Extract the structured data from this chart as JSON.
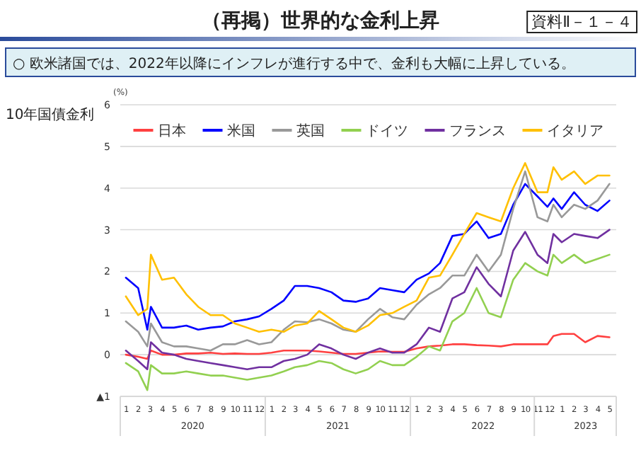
{
  "chart_data": {
    "type": "line",
    "title": "（再掲）世界的な金利上昇",
    "subtitle": "○ 欧米諸国では、2022年以降にインフレが進行する中で、金利も大幅に上昇している。",
    "ylabel": "(%)",
    "annotations": [
      "資料Ⅱ－１－４",
      "10年国債金利"
    ],
    "x": [
      "2020-01-15",
      "2020-02-15",
      "2020-03-09",
      "2020-03-18",
      "2020-04-15",
      "2020-05-15",
      "2020-06-15",
      "2020-07-15",
      "2020-08-15",
      "2020-09-15",
      "2020-10-15",
      "2020-11-15",
      "2020-12-15",
      "2021-01-15",
      "2021-02-15",
      "2021-03-15",
      "2021-04-15",
      "2021-05-15",
      "2021-06-15",
      "2021-07-15",
      "2021-08-15",
      "2021-09-15",
      "2021-10-15",
      "2021-11-15",
      "2021-12-15",
      "2022-01-15",
      "2022-02-15",
      "2022-03-15",
      "2022-04-15",
      "2022-05-15",
      "2022-06-15",
      "2022-07-15",
      "2022-08-15",
      "2022-09-15",
      "2022-10-15",
      "2022-11-15",
      "2022-12-10",
      "2022-12-25",
      "2023-01-15",
      "2023-02-15",
      "2023-03-15",
      "2023-04-15",
      "2023-05-15"
    ],
    "series": [
      {
        "name": "日本",
        "color": "#ff4040",
        "values": [
          0.0,
          -0.05,
          -0.1,
          0.1,
          0.0,
          0.0,
          0.03,
          0.03,
          0.05,
          0.02,
          0.03,
          0.02,
          0.02,
          0.05,
          0.1,
          0.1,
          0.1,
          0.08,
          0.05,
          0.02,
          0.02,
          0.05,
          0.08,
          0.07,
          0.07,
          0.15,
          0.2,
          0.22,
          0.25,
          0.25,
          0.23,
          0.22,
          0.2,
          0.25,
          0.25,
          0.25,
          0.25,
          0.45,
          0.5,
          0.5,
          0.3,
          0.45,
          0.42
        ]
      },
      {
        "name": "米国",
        "color": "#0000ff",
        "values": [
          1.85,
          1.6,
          0.6,
          1.15,
          0.65,
          0.65,
          0.7,
          0.6,
          0.65,
          0.68,
          0.8,
          0.85,
          0.92,
          1.1,
          1.3,
          1.65,
          1.65,
          1.6,
          1.5,
          1.3,
          1.27,
          1.35,
          1.6,
          1.55,
          1.5,
          1.8,
          1.95,
          2.2,
          2.85,
          2.9,
          3.2,
          2.8,
          2.9,
          3.6,
          4.1,
          3.8,
          3.55,
          3.75,
          3.5,
          3.9,
          3.6,
          3.45,
          3.7
        ]
      },
      {
        "name": "英国",
        "color": "#999999",
        "values": [
          0.8,
          0.55,
          0.2,
          0.75,
          0.3,
          0.2,
          0.2,
          0.15,
          0.1,
          0.25,
          0.25,
          0.35,
          0.25,
          0.3,
          0.6,
          0.8,
          0.78,
          0.85,
          0.75,
          0.6,
          0.55,
          0.85,
          1.1,
          0.9,
          0.85,
          1.2,
          1.45,
          1.6,
          1.9,
          1.9,
          2.4,
          2.0,
          2.4,
          3.5,
          4.4,
          3.3,
          3.2,
          3.6,
          3.3,
          3.6,
          3.5,
          3.7,
          4.1
        ]
      },
      {
        "name": "ドイツ",
        "color": "#92d050",
        "values": [
          -0.2,
          -0.4,
          -0.85,
          -0.25,
          -0.45,
          -0.45,
          -0.4,
          -0.45,
          -0.5,
          -0.5,
          -0.55,
          -0.6,
          -0.55,
          -0.5,
          -0.4,
          -0.3,
          -0.25,
          -0.15,
          -0.2,
          -0.35,
          -0.45,
          -0.35,
          -0.15,
          -0.25,
          -0.25,
          -0.05,
          0.2,
          0.1,
          0.8,
          1.0,
          1.6,
          1.0,
          0.9,
          1.8,
          2.2,
          2.0,
          1.9,
          2.4,
          2.2,
          2.4,
          2.2,
          2.3,
          2.4
        ]
      },
      {
        "name": "フランス",
        "color": "#7030a0",
        "values": [
          0.1,
          -0.15,
          -0.35,
          0.3,
          0.05,
          0.0,
          -0.1,
          -0.15,
          -0.2,
          -0.25,
          -0.3,
          -0.35,
          -0.3,
          -0.3,
          -0.15,
          -0.1,
          0.0,
          0.25,
          0.15,
          0.0,
          -0.1,
          0.05,
          0.15,
          0.05,
          0.05,
          0.25,
          0.65,
          0.55,
          1.35,
          1.5,
          2.1,
          1.7,
          1.4,
          2.5,
          2.95,
          2.4,
          2.2,
          2.9,
          2.7,
          2.9,
          2.85,
          2.8,
          3.0
        ]
      },
      {
        "name": "イタリア",
        "color": "#ffc000",
        "values": [
          1.4,
          0.95,
          1.1,
          2.4,
          1.8,
          1.85,
          1.45,
          1.15,
          0.95,
          0.95,
          0.75,
          0.65,
          0.55,
          0.6,
          0.55,
          0.7,
          0.75,
          1.05,
          0.85,
          0.65,
          0.55,
          0.7,
          0.95,
          1.0,
          1.15,
          1.3,
          1.85,
          1.9,
          2.4,
          2.9,
          3.4,
          3.3,
          3.2,
          4.0,
          4.6,
          3.9,
          3.9,
          4.5,
          4.2,
          4.4,
          4.1,
          4.3,
          4.3
        ]
      }
    ],
    "xlim": [
      "2020-01-01",
      "2023-06-01"
    ],
    "xticks": [
      {
        "value": "2020-01-16",
        "label": "1"
      },
      {
        "value": "2020-02-15",
        "label": "2"
      },
      {
        "value": "2020-03-16",
        "label": "3"
      },
      {
        "value": "2020-04-16",
        "label": "4"
      },
      {
        "value": "2020-05-16",
        "label": "5"
      },
      {
        "value": "2020-06-16",
        "label": "6"
      },
      {
        "value": "2020-07-16",
        "label": "7"
      },
      {
        "value": "2020-08-16",
        "label": "8"
      },
      {
        "value": "2020-09-16",
        "label": "9"
      },
      {
        "value": "2020-10-16",
        "label": "10"
      },
      {
        "value": "2020-11-16",
        "label": "11"
      },
      {
        "value": "2020-12-16",
        "label": "12"
      },
      {
        "value": "2021-01-16",
        "label": "1"
      },
      {
        "value": "2021-02-15",
        "label": "2"
      },
      {
        "value": "2021-03-16",
        "label": "3"
      },
      {
        "value": "2021-04-16",
        "label": "4"
      },
      {
        "value": "2021-05-16",
        "label": "5"
      },
      {
        "value": "2021-06-16",
        "label": "6"
      },
      {
        "value": "2021-07-16",
        "label": "7"
      },
      {
        "value": "2021-08-16",
        "label": "8"
      },
      {
        "value": "2021-09-16",
        "label": "9"
      },
      {
        "value": "2021-10-16",
        "label": "10"
      },
      {
        "value": "2021-11-16",
        "label": "11"
      },
      {
        "value": "2021-12-16",
        "label": "12"
      },
      {
        "value": "2022-01-16",
        "label": "1"
      },
      {
        "value": "2022-02-15",
        "label": "2"
      },
      {
        "value": "2022-03-16",
        "label": "3"
      },
      {
        "value": "2022-04-16",
        "label": "4"
      },
      {
        "value": "2022-05-16",
        "label": "5"
      },
      {
        "value": "2022-06-16",
        "label": "6"
      },
      {
        "value": "2022-07-16",
        "label": "7"
      },
      {
        "value": "2022-08-16",
        "label": "8"
      },
      {
        "value": "2022-09-16",
        "label": "9"
      },
      {
        "value": "2022-10-16",
        "label": "10"
      },
      {
        "value": "2022-11-16",
        "label": "11"
      },
      {
        "value": "2022-12-16",
        "label": "12"
      },
      {
        "value": "2023-01-16",
        "label": "1"
      },
      {
        "value": "2023-02-15",
        "label": "2"
      },
      {
        "value": "2023-03-16",
        "label": "3"
      },
      {
        "value": "2023-04-16",
        "label": "4"
      },
      {
        "value": "2023-05-16",
        "label": "5"
      }
    ],
    "x2lim": [
      "2020-01-01",
      "2023-06-01"
    ],
    "x2ticks": [
      {
        "value": "2020-07-01",
        "label": "2020"
      },
      {
        "value": "2021-07-01",
        "label": "2021"
      },
      {
        "value": "2022-07-01",
        "label": "2022"
      },
      {
        "value": "2023-03-16",
        "label": "2023"
      }
    ],
    "ylim": [
      -1,
      6
    ],
    "yticks": [
      {
        "value": -1,
        "label": "▲1"
      },
      0,
      1,
      2,
      3,
      4,
      5,
      6
    ],
    "grid": "y",
    "legend": "top"
  }
}
